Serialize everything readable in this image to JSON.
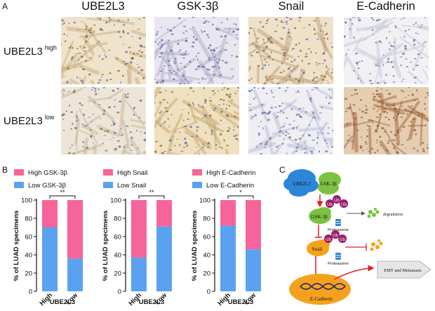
{
  "panels": {
    "a": "A",
    "b": "B",
    "c": "C"
  },
  "ihc": {
    "columns": [
      "UBE2L3",
      "GSK-3β",
      "Snail",
      "E-Cadherin"
    ],
    "rows": [
      {
        "label": "UBE2L3",
        "level": "high"
      },
      {
        "label": "UBE2L3",
        "level": "low"
      }
    ],
    "stain_colors": {
      "hematoxylin": "#5b6ba8",
      "dab": "#8a5a2a"
    }
  },
  "chart_data": [
    {
      "type": "bar",
      "categories": [
        "High",
        "Low"
      ],
      "series": [
        {
          "name": "Low GSK-3β",
          "values": [
            70,
            36
          ],
          "color": "#5aa2f0"
        },
        {
          "name": "High GSK-3β",
          "values": [
            30,
            64
          ],
          "color": "#f6649b"
        }
      ],
      "xlabel": "UBE2L3",
      "ylabel": "% of LUAD specimens",
      "ylim": [
        0,
        100
      ],
      "yticks": [
        "0",
        "20",
        "40",
        "60",
        "80",
        "100"
      ],
      "significance": "**",
      "stacked": true
    },
    {
      "type": "bar",
      "categories": [
        "High",
        "Low"
      ],
      "series": [
        {
          "name": "Low Snail",
          "values": [
            37,
            71
          ],
          "color": "#5aa2f0"
        },
        {
          "name": "High Snail",
          "values": [
            63,
            29
          ],
          "color": "#f6649b"
        }
      ],
      "xlabel": "UBE2L3",
      "ylabel": "% of LUAD specimens",
      "ylim": [
        0,
        100
      ],
      "yticks": [
        "0",
        "20",
        "40",
        "60",
        "80",
        "100"
      ],
      "significance": "**",
      "stacked": true
    },
    {
      "type": "bar",
      "categories": [
        "High",
        "Low"
      ],
      "series": [
        {
          "name": "Low E-Cadherin",
          "values": [
            72,
            46
          ],
          "color": "#5aa2f0"
        },
        {
          "name": "High E-Cadherin",
          "values": [
            28,
            54
          ],
          "color": "#f6649b"
        }
      ],
      "xlabel": "UBE2L3",
      "ylabel": "% of LUAD specimens",
      "ylim": [
        0,
        100
      ],
      "yticks": [
        "0",
        "20",
        "40",
        "60",
        "80",
        "100"
      ],
      "significance": "*",
      "stacked": true
    }
  ],
  "legends": [
    [
      "High GSK-3β",
      "Low GSK-3β"
    ],
    [
      "High Snail",
      "Low Snail"
    ],
    [
      "High E-Cadherin",
      "Low E-Cadherin"
    ]
  ],
  "pathway": {
    "complex": [
      "UBE2L3",
      "GSK-3β"
    ],
    "gsk": "GSK-3β",
    "snail": "Snail",
    "ecad": "E-Cadherin",
    "ub": "Ub",
    "proteasome": "Proteasome",
    "degradation": "degradation",
    "emt": "EMT and Metastasis",
    "colors": {
      "cloud": "#2e86d8",
      "green": "#7cc242",
      "orange": "#f4a21d",
      "ub": "#9b1a6b",
      "arrow": "#e02020"
    }
  }
}
